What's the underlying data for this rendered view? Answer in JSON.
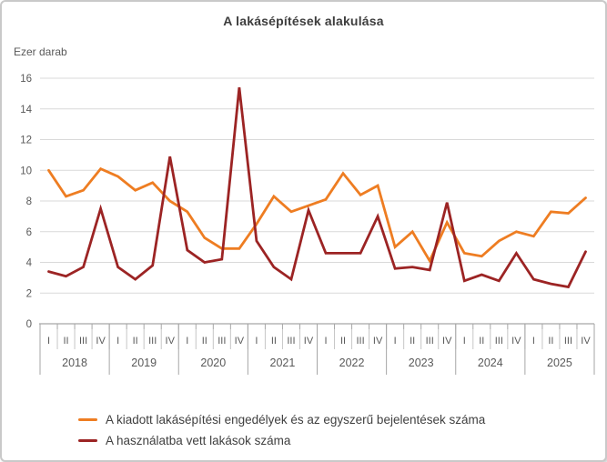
{
  "chart_data": {
    "type": "line",
    "title": "A lakásépítések alakulása",
    "unit_label": "Ezer darab",
    "ylim": [
      0,
      16
    ],
    "yticks": [
      0,
      2,
      4,
      6,
      8,
      10,
      12,
      14,
      16
    ],
    "years": [
      "2018",
      "2019",
      "2020",
      "2021",
      "2022",
      "2023",
      "2024",
      "2025"
    ],
    "quarter_labels": [
      "I",
      "II",
      "III",
      "IV"
    ],
    "grid": true,
    "legend_position": "bottom-left",
    "colors": {
      "grid": "#d9d9d9",
      "axis": "#a6a6a6",
      "separator": "#c6c6c6",
      "axis_text": "#595959",
      "year_text": "#595959"
    },
    "series": [
      {
        "name": "A kiadott lakásépítési engedélyek és az egyszerű bejelentések száma",
        "color": "#ee7d22",
        "values": [
          10.0,
          8.3,
          8.7,
          10.1,
          9.6,
          8.7,
          9.2,
          8.0,
          7.3,
          5.6,
          4.9,
          4.9,
          6.5,
          8.3,
          7.3,
          7.7,
          8.1,
          9.8,
          8.4,
          9.0,
          5.0,
          6.0,
          4.1,
          6.6,
          4.6,
          4.4,
          5.4,
          6.0,
          5.7,
          7.3,
          7.2,
          8.2
        ]
      },
      {
        "name": "A használatba vett lakások száma",
        "color": "#9c2424",
        "values": [
          3.4,
          3.1,
          3.7,
          7.5,
          3.7,
          2.9,
          3.8,
          10.9,
          4.8,
          4.0,
          4.2,
          15.4,
          5.4,
          3.7,
          2.9,
          7.4,
          4.6,
          4.6,
          4.6,
          7.0,
          3.6,
          3.7,
          3.5,
          7.9,
          2.8,
          3.2,
          2.8,
          4.6,
          2.9,
          2.6,
          2.4,
          4.7
        ]
      }
    ]
  }
}
